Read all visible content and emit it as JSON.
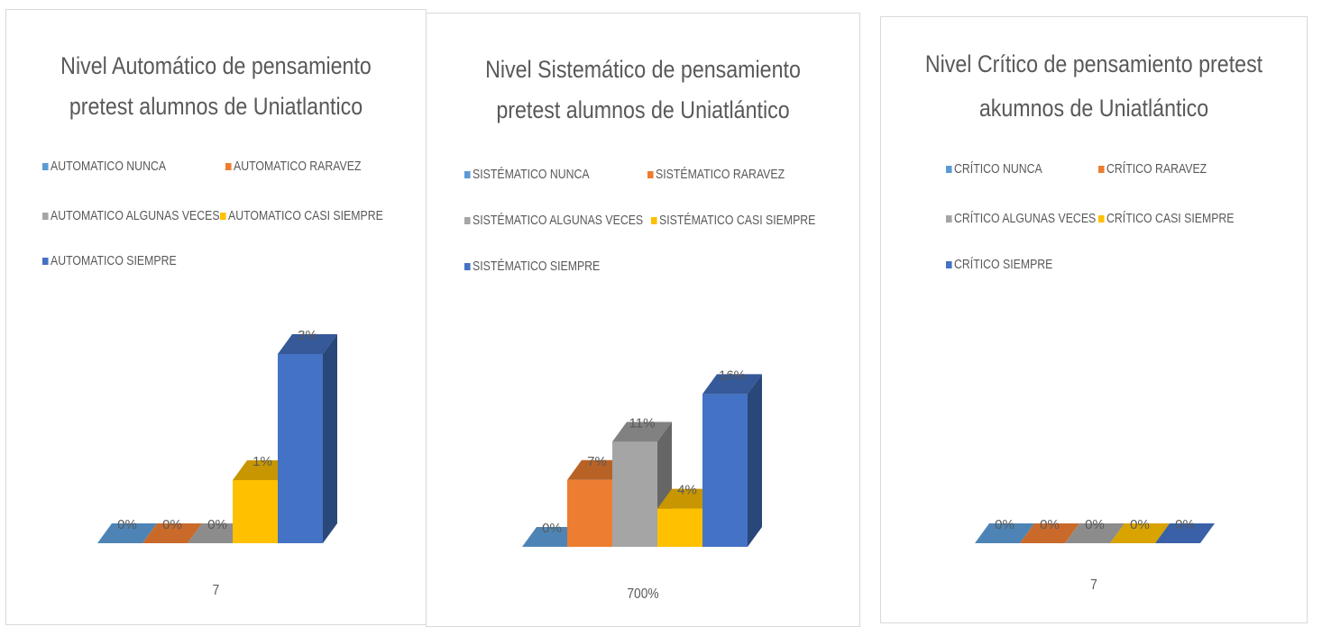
{
  "chart_data": [
    {
      "type": "bar",
      "title_line1": "Nivel Automático de pensamiento",
      "title_line2": "pretest alumnos de Uniatlantico",
      "category": "7",
      "series": [
        {
          "name": "AUTOMATICO NUNCA",
          "value": 0,
          "label": "0%"
        },
        {
          "name": "AUTOMATICO RARAVEZ",
          "value": 0,
          "label": "0%"
        },
        {
          "name": "AUTOMATICO ALGUNAS VECES",
          "value": 0,
          "label": "0%"
        },
        {
          "name": "AUTOMATICO CASI SIEMPRE",
          "value": 1,
          "label": "1%"
        },
        {
          "name": "AUTOMATICO SIEMPRE",
          "value": 3,
          "label": "3%"
        }
      ]
    },
    {
      "type": "bar",
      "title_line1": "Nivel Sistemático de pensamiento",
      "title_line2": "pretest alumnos de Uniatlántico",
      "category": "700%",
      "series": [
        {
          "name": "SISTÉMATICO NUNCA",
          "value": 0,
          "label": "0%"
        },
        {
          "name": "SISTÉMATICO RARAVEZ",
          "value": 7,
          "label": "7%"
        },
        {
          "name": "SISTÉMATICO ALGUNAS VECES",
          "value": 11,
          "label": "11%"
        },
        {
          "name": "SISTÉMATICO CASI SIEMPRE",
          "value": 4,
          "label": "4%"
        },
        {
          "name": "SISTÉMATICO SIEMPRE",
          "value": 16,
          "label": "16%"
        }
      ]
    },
    {
      "type": "bar",
      "title_line1": "Nivel Crítico de pensamiento pretest",
      "title_line2": "akumnos de Uniatlántico",
      "category": "7",
      "series": [
        {
          "name": "CRÍTICO NUNCA",
          "value": 0,
          "label": "0%"
        },
        {
          "name": "CRÍTICO RARAVEZ",
          "value": 0,
          "label": "0%"
        },
        {
          "name": "CRÍTICO ALGUNAS VECES",
          "value": 0,
          "label": "0%"
        },
        {
          "name": "CRÍTICO CASI SIEMPRE",
          "value": 0,
          "label": "0%"
        },
        {
          "name": "CRÍTICO SIEMPRE",
          "value": 0,
          "label": "0%"
        }
      ]
    }
  ],
  "colors": {
    "series": [
      "#5b9bd5",
      "#ed7d31",
      "#a5a5a5",
      "#ffc000",
      "#4472c4"
    ],
    "text": "#595959"
  }
}
